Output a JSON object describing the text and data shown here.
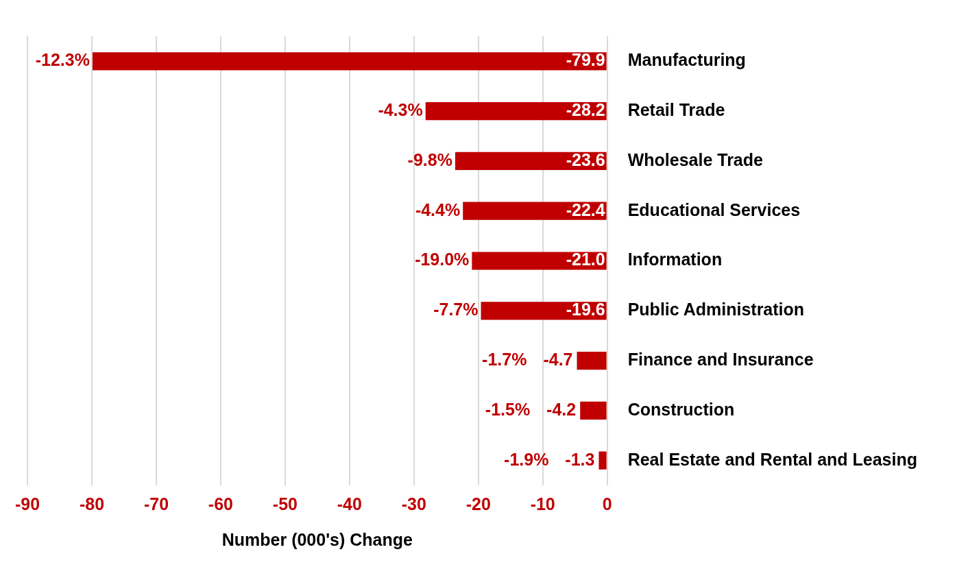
{
  "chart_data": {
    "type": "bar",
    "orientation": "horizontal",
    "xlabel": "Number (000's) Change",
    "categories": [
      "Manufacturing",
      "Retail Trade",
      "Wholesale Trade",
      "Educational Services",
      "Information",
      "Public Administration",
      "Finance and Insurance",
      "Construction",
      "Real Estate and Rental and Leasing"
    ],
    "values": [
      -79.9,
      -28.2,
      -23.6,
      -22.4,
      -21.0,
      -19.6,
      -4.7,
      -4.2,
      -1.3
    ],
    "color": "#c00000",
    "xlim": [
      -90,
      0
    ],
    "xticks": [
      -90,
      -80,
      -70,
      -60,
      -50,
      -40,
      -30,
      -20,
      -10,
      0
    ],
    "grid": "x",
    "legend": false,
    "value_labels": [
      "-79.9",
      "-28.2",
      "-23.6",
      "-22.4",
      "-21.0",
      "-19.6",
      "-4.7",
      "-4.2",
      "-1.3"
    ],
    "annotations": [
      {
        "text": "-12.3%",
        "x": -79.9,
        "y": "Manufacturing"
      },
      {
        "text": "-4.3%",
        "x": -28.2,
        "y": "Retail Trade"
      },
      {
        "text": "-9.8%",
        "x": -23.6,
        "y": "Wholesale Trade"
      },
      {
        "text": "-4.4%",
        "x": -22.4,
        "y": "Educational Services"
      },
      {
        "text": "-19.0%",
        "x": -21.0,
        "y": "Information"
      },
      {
        "text": "-7.7%",
        "x": -19.6,
        "y": "Public Administration"
      },
      {
        "text": "-1.7%",
        "x": -4.7,
        "y": "Finance and Insurance"
      },
      {
        "text": "-1.5%",
        "x": -4.2,
        "y": "Construction"
      },
      {
        "text": "-1.9%",
        "x": -1.3,
        "y": "Real Estate and Rental and Leasing"
      }
    ]
  }
}
